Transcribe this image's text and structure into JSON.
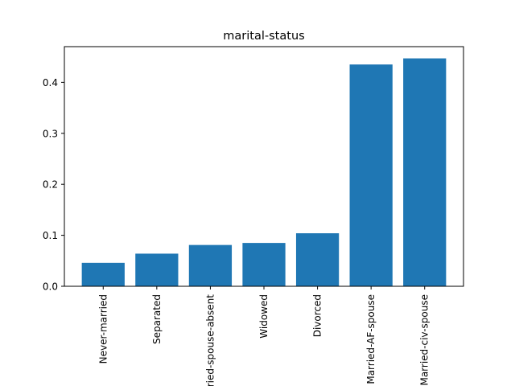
{
  "chart_data": {
    "type": "bar",
    "title": "marital-status",
    "xlabel": "",
    "ylabel": "",
    "categories": [
      "Never-married",
      "Separated",
      "Married-spouse-absent",
      "Widowed",
      "Divorced",
      "Married-AF-spouse",
      "Married-civ-spouse"
    ],
    "values": [
      0.046,
      0.064,
      0.081,
      0.085,
      0.104,
      0.435,
      0.447
    ],
    "ylim": [
      0,
      0.47
    ],
    "yticks": [
      "0.0",
      "0.1",
      "0.2",
      "0.3",
      "0.4"
    ],
    "grid": false,
    "bar_color": "#1f77b4"
  }
}
